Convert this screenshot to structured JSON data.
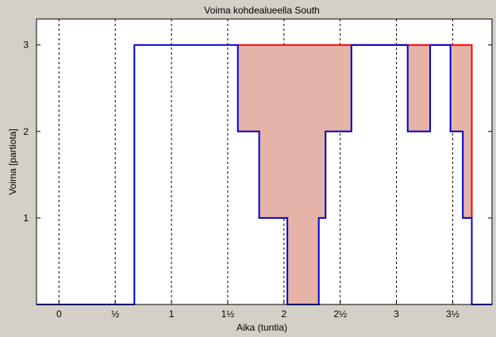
{
  "chart_data": {
    "type": "line",
    "title": "Voima kohdealueella South",
    "xlabel": "Aika (tuntia)",
    "ylabel": "Voima [partiota]",
    "xlim": [
      -0.2,
      3.85
    ],
    "ylim": [
      0,
      3.3
    ],
    "xticks": [
      0,
      0.5,
      1,
      1.5,
      2,
      2.5,
      3,
      3.5
    ],
    "xtick_labels": [
      "0",
      "½",
      "1",
      "1½",
      "2",
      "2½",
      "3",
      "3½"
    ],
    "yticks": [
      1,
      2,
      3
    ],
    "ytick_labels": [
      "1",
      "2",
      "3"
    ],
    "grid": "vertical dashed at x ticks",
    "colors": {
      "actual": "#0000cc",
      "required": "#ff0000",
      "deficit_fill": "#e6b3a8",
      "background": "#d4d0c8",
      "plot_background": "#ffffff"
    },
    "series": [
      {
        "role": "actual",
        "step_points": [
          [
            -0.2,
            0
          ],
          [
            0.67,
            0
          ],
          [
            0.67,
            3
          ],
          [
            1.59,
            3
          ],
          [
            1.59,
            2
          ],
          [
            1.78,
            2
          ],
          [
            1.78,
            1
          ],
          [
            2.03,
            1
          ],
          [
            2.03,
            0
          ],
          [
            2.31,
            0
          ],
          [
            2.31,
            1
          ],
          [
            2.37,
            1
          ],
          [
            2.37,
            2
          ],
          [
            2.6,
            2
          ],
          [
            2.6,
            3
          ],
          [
            3.1,
            3
          ],
          [
            3.1,
            2
          ],
          [
            3.3,
            2
          ],
          [
            3.3,
            3
          ],
          [
            3.48,
            3
          ],
          [
            3.48,
            2
          ],
          [
            3.59,
            2
          ],
          [
            3.59,
            1
          ],
          [
            3.67,
            1
          ],
          [
            3.67,
            0
          ],
          [
            3.85,
            0
          ]
        ]
      },
      {
        "role": "required",
        "step_points": [
          [
            1.59,
            3
          ],
          [
            2.6,
            3
          ],
          [
            3.1,
            3
          ],
          [
            3.3,
            3
          ],
          [
            3.48,
            3
          ],
          [
            3.67,
            3
          ],
          [
            3.67,
            1
          ]
        ]
      }
    ],
    "deficit_areas": [
      {
        "x": [
          1.59,
          2.6
        ]
      },
      {
        "x": [
          3.1,
          3.3
        ]
      },
      {
        "x": [
          3.48,
          3.67
        ]
      }
    ]
  }
}
